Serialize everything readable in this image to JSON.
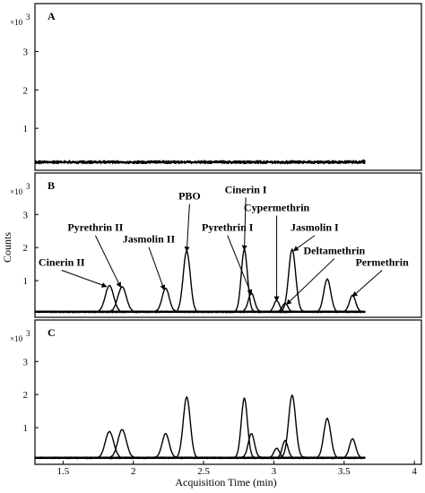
{
  "chart_data": {
    "type": "line",
    "xlabel": "Acquisition Time (min)",
    "ylabel": "Counts",
    "xlim": [
      1.3,
      4.05
    ],
    "xticks": [
      1.5,
      2,
      2.5,
      3,
      3.5,
      4
    ],
    "xtick_labels": [
      "1.5",
      "2",
      "2.5",
      "3",
      "3.5",
      "4"
    ],
    "ylim": [
      0,
      4.2
    ],
    "yticks": [
      1,
      2,
      3
    ],
    "ytick_labels": [
      "1",
      "2",
      "3"
    ],
    "y_multiplier_base": "×10",
    "y_multiplier_exp": "3",
    "trace_range": [
      1.3,
      3.65
    ],
    "panels": [
      {
        "label": "A",
        "baseline": 0.12,
        "peaks": [
          {
            "t": 3.64,
            "h": 0.05,
            "w": 0.008
          }
        ]
      },
      {
        "label": "B",
        "baseline": 0.05,
        "peaks": [
          {
            "t": 1.83,
            "h": 0.8,
            "w": 0.03
          },
          {
            "t": 1.92,
            "h": 0.75,
            "w": 0.03
          },
          {
            "t": 2.23,
            "h": 0.7,
            "w": 0.025
          },
          {
            "t": 2.38,
            "h": 1.85,
            "w": 0.025
          },
          {
            "t": 2.79,
            "h": 1.88,
            "w": 0.022
          },
          {
            "t": 2.84,
            "h": 0.55,
            "w": 0.022
          },
          {
            "t": 3.02,
            "h": 0.35,
            "w": 0.02
          },
          {
            "t": 3.08,
            "h": 0.25,
            "w": 0.02
          },
          {
            "t": 3.13,
            "h": 1.88,
            "w": 0.025
          },
          {
            "t": 3.38,
            "h": 1.0,
            "w": 0.025
          },
          {
            "t": 3.56,
            "h": 0.5,
            "w": 0.022
          }
        ],
        "annotations": [
          {
            "text": "Cinerin II",
            "tx": 1.49,
            "ty": 1.45,
            "ax": 1.81,
            "ay": 0.82
          },
          {
            "text": "Pyrethrin II",
            "tx": 1.73,
            "ty": 2.5,
            "ax": 1.91,
            "ay": 0.8
          },
          {
            "text": "Jasmolin II",
            "tx": 2.11,
            "ty": 2.15,
            "ax": 2.22,
            "ay": 0.72
          },
          {
            "text": "PBO",
            "tx": 2.4,
            "ty": 3.45,
            "ax": 2.38,
            "ay": 1.88
          },
          {
            "text": "Pyrethrin I",
            "tx": 2.67,
            "ty": 2.5,
            "ax": 2.84,
            "ay": 0.58
          },
          {
            "text": "Cinerin I",
            "tx": 2.8,
            "ty": 3.65,
            "ax": 2.79,
            "ay": 1.92
          },
          {
            "text": "Cypermethrin",
            "tx": 3.02,
            "ty": 3.1,
            "ax": 3.02,
            "ay": 0.38
          },
          {
            "text": "Jasmolin I",
            "tx": 3.29,
            "ty": 2.5,
            "ax": 3.14,
            "ay": 1.9
          },
          {
            "text": "Deltamethrin",
            "tx": 3.43,
            "ty": 1.8,
            "ax": 3.09,
            "ay": 0.28
          },
          {
            "text": "Permethrin",
            "tx": 3.77,
            "ty": 1.45,
            "ax": 3.56,
            "ay": 0.52
          }
        ]
      },
      {
        "label": "C",
        "baseline": 0.08,
        "peaks": [
          {
            "t": 1.83,
            "h": 0.8,
            "w": 0.03
          },
          {
            "t": 1.92,
            "h": 0.85,
            "w": 0.03
          },
          {
            "t": 2.23,
            "h": 0.72,
            "w": 0.025
          },
          {
            "t": 2.38,
            "h": 1.85,
            "w": 0.025
          },
          {
            "t": 2.79,
            "h": 1.8,
            "w": 0.022
          },
          {
            "t": 2.84,
            "h": 0.72,
            "w": 0.022
          },
          {
            "t": 3.02,
            "h": 0.3,
            "w": 0.02
          },
          {
            "t": 3.08,
            "h": 0.52,
            "w": 0.02
          },
          {
            "t": 3.13,
            "h": 1.88,
            "w": 0.025
          },
          {
            "t": 3.38,
            "h": 1.2,
            "w": 0.025
          },
          {
            "t": 3.56,
            "h": 0.58,
            "w": 0.022
          }
        ]
      }
    ]
  }
}
